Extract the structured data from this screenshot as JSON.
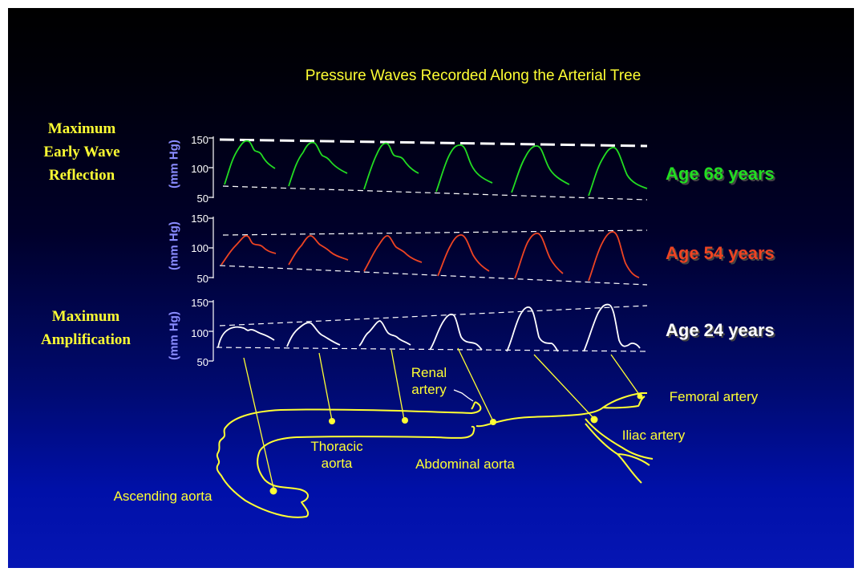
{
  "title": "Pressure Waves Recorded Along the Arterial Tree",
  "labels": {
    "max_reflection": [
      "Maximum",
      "Early Wave",
      "Reflection"
    ],
    "max_amplification": [
      "Maximum",
      "Amplification"
    ]
  },
  "axis": {
    "title": "(mm Hg)",
    "ticks": [
      "150",
      "100",
      "50"
    ]
  },
  "rows": [
    {
      "label": "Age 68 years",
      "color": "#22dd22"
    },
    {
      "label": "Age 54 years",
      "color": "#ee4422"
    },
    {
      "label": "Age 24 years",
      "color": "#ffffff"
    }
  ],
  "anatomy": {
    "ascending_aorta": "Ascending aorta",
    "thoracic_aorta": [
      "Thoracic",
      "aorta"
    ],
    "abdominal_aorta": "Abdominal aorta",
    "renal_artery": [
      "Renal",
      "artery"
    ],
    "iliac_artery": "Iliac artery",
    "femoral_artery": "Femoral artery"
  },
  "colors": {
    "annotation": "#ffff33",
    "axis_title": "#8a8cff"
  }
}
